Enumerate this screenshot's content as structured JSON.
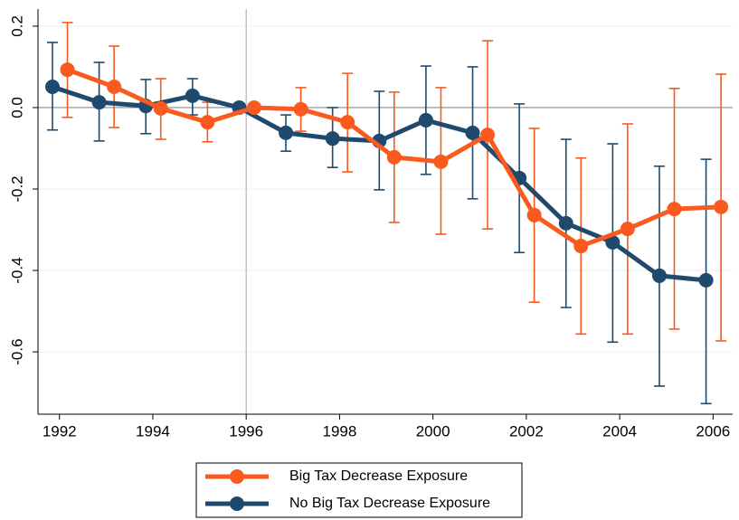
{
  "chart_data": {
    "type": "line",
    "xlim": [
      1991.54,
      2006.42
    ],
    "xticks": [
      1992,
      1994,
      1996,
      1998,
      2000,
      2002,
      2004,
      2006
    ],
    "ylim": [
      -0.753,
      0.242
    ],
    "yticks": [
      0.2,
      {
        "value": 0,
        "label": "0.0"
      },
      -0.2,
      -0.4,
      -0.6
    ],
    "grid": true,
    "reference_lines": {
      "x": 1996,
      "y": 0
    },
    "series": [
      {
        "name": "Big Tax Decrease Exposure",
        "color": "#fa5a1e",
        "x": [
          1992.17,
          1993.17,
          1994.17,
          1995.17,
          1996.17,
          1997.17,
          1998.17,
          1999.17,
          2000.17,
          2001.17,
          2002.17,
          2003.17,
          2004.17,
          2005.17,
          2006.17
        ],
        "values": [
          0.093,
          0.051,
          -0.002,
          -0.036,
          0,
          -0.004,
          -0.036,
          -0.122,
          -0.133,
          -0.067,
          -0.264,
          -0.34,
          -0.298,
          -0.249,
          -0.244
        ],
        "upper": [
          0.209,
          0.151,
          0.071,
          0.013,
          0,
          0.049,
          0.084,
          0.038,
          0.049,
          0.164,
          -0.051,
          -0.124,
          -0.04,
          0.047,
          0.082
        ],
        "lower": [
          -0.024,
          -0.049,
          -0.078,
          -0.084,
          0,
          -0.058,
          -0.158,
          -0.282,
          -0.311,
          -0.298,
          -0.478,
          -0.556,
          -0.556,
          -0.544,
          -0.573
        ]
      },
      {
        "name": "No Big Tax Decrease Exposure",
        "color": "#1f4a6e",
        "x": [
          1991.85,
          1992.85,
          1993.85,
          1994.85,
          1995.85,
          1996.85,
          1997.85,
          1998.85,
          1999.85,
          2000.85,
          2001.85,
          2002.85,
          2003.85,
          2004.85,
          2005.85
        ],
        "values": [
          0.051,
          0.013,
          0.004,
          0.029,
          0,
          -0.062,
          -0.076,
          -0.082,
          -0.031,
          -0.062,
          -0.173,
          -0.284,
          -0.331,
          -0.413,
          -0.424
        ],
        "upper": [
          0.16,
          0.111,
          0.069,
          0.071,
          0,
          -0.018,
          0,
          0.04,
          0.102,
          0.1,
          0.009,
          -0.078,
          -0.089,
          -0.144,
          -0.127
        ],
        "lower": [
          -0.055,
          -0.082,
          -0.064,
          -0.018,
          0,
          -0.107,
          -0.147,
          -0.202,
          -0.164,
          -0.224,
          -0.356,
          -0.491,
          -0.576,
          -0.684,
          -0.727
        ]
      }
    ],
    "legend": "bottom"
  }
}
